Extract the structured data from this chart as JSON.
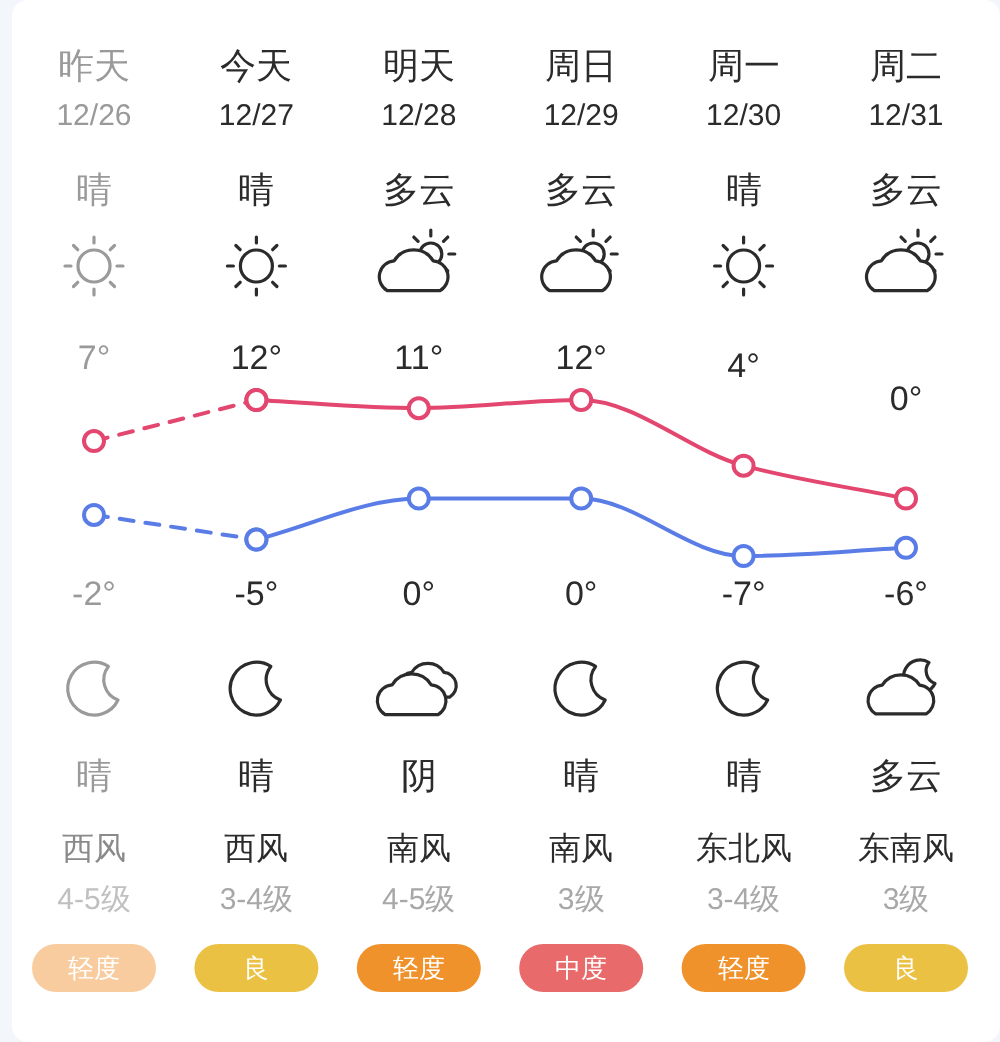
{
  "chart_data": {
    "type": "line",
    "categories": [
      "昨天",
      "今天",
      "明天",
      "周日",
      "周一",
      "周二"
    ],
    "tick_labels": "x",
    "marker": "circle",
    "series": [
      {
        "color": "#e3466f",
        "line_style": "dashed",
        "values": [
          7,
          12,
          null,
          null,
          null,
          null
        ],
        "value_labels": [
          "7°",
          null,
          null,
          null,
          null,
          null
        ]
      },
      {
        "color": "#e3466f",
        "line_style": "solid",
        "values": [
          null,
          12,
          11,
          12,
          4,
          0
        ],
        "value_labels": [
          null,
          "12°",
          "11°",
          "12°",
          "4°",
          "0°"
        ]
      },
      {
        "color": "#5a7ce6",
        "line_style": "dashed",
        "values": [
          -2,
          -5,
          null,
          null,
          null,
          null
        ],
        "value_labels": [
          "-2°",
          null,
          null,
          null,
          null,
          null
        ]
      },
      {
        "color": "#5a7ce6",
        "line_style": "solid",
        "values": [
          null,
          -5,
          0,
          0,
          -7,
          -6
        ],
        "value_labels": [
          null,
          "-5°",
          "0°",
          "0°",
          "-7°",
          "-6°"
        ]
      }
    ],
    "annotations": [
      "12/26",
      "12/27",
      "12/28",
      "12/29",
      "12/30",
      "12/31",
      "晴",
      "晴",
      "多云",
      "多云",
      "晴",
      "多云",
      "晴",
      "晴",
      "阴",
      "晴",
      "晴",
      "多云",
      "西风",
      "西风",
      "南风",
      "南风",
      "东北风",
      "东南风",
      "4-5级",
      "3-4级",
      "4-5级",
      "3级",
      "3-4级",
      "3级",
      "轻度",
      "良",
      "轻度",
      "中度",
      "轻度",
      "良"
    ]
  }
}
